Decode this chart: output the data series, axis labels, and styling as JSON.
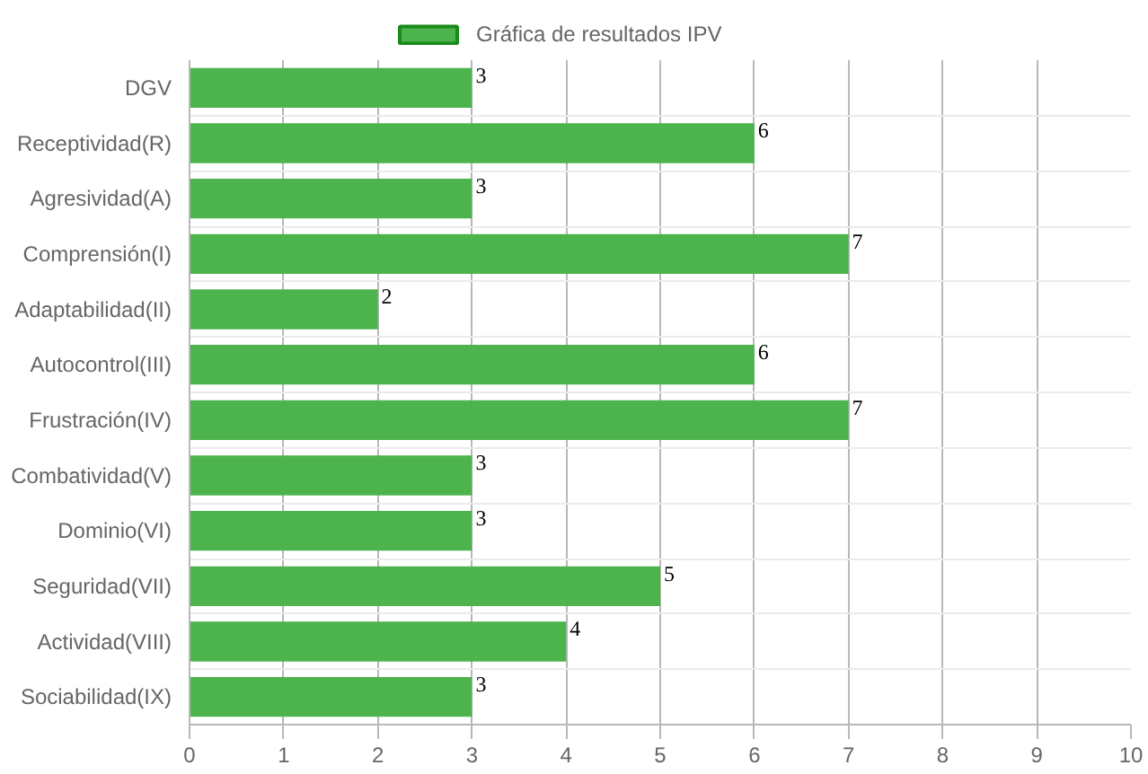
{
  "chart_data": {
    "type": "bar",
    "orientation": "horizontal",
    "categories": [
      "DGV",
      "Receptividad(R)",
      "Agresividad(A)",
      "Comprensión(I)",
      "Adaptabilidad(II)",
      "Autocontrol(III)",
      "Frustración(IV)",
      "Combatividad(V)",
      "Dominio(VI)",
      "Seguridad(VII)",
      "Actividad(VIII)",
      "Sociabilidad(IX)"
    ],
    "series": [
      {
        "name": "Gráfica de resultados IPV",
        "color": "#4db34d",
        "values": [
          3,
          6,
          3,
          7,
          2,
          6,
          7,
          3,
          3,
          5,
          4,
          3
        ]
      }
    ],
    "xlim": [
      0,
      10
    ],
    "xticks": [
      0,
      1,
      2,
      3,
      4,
      5,
      6,
      7,
      8,
      9,
      10
    ],
    "grid": true,
    "legend": "top",
    "data_labels": true
  }
}
